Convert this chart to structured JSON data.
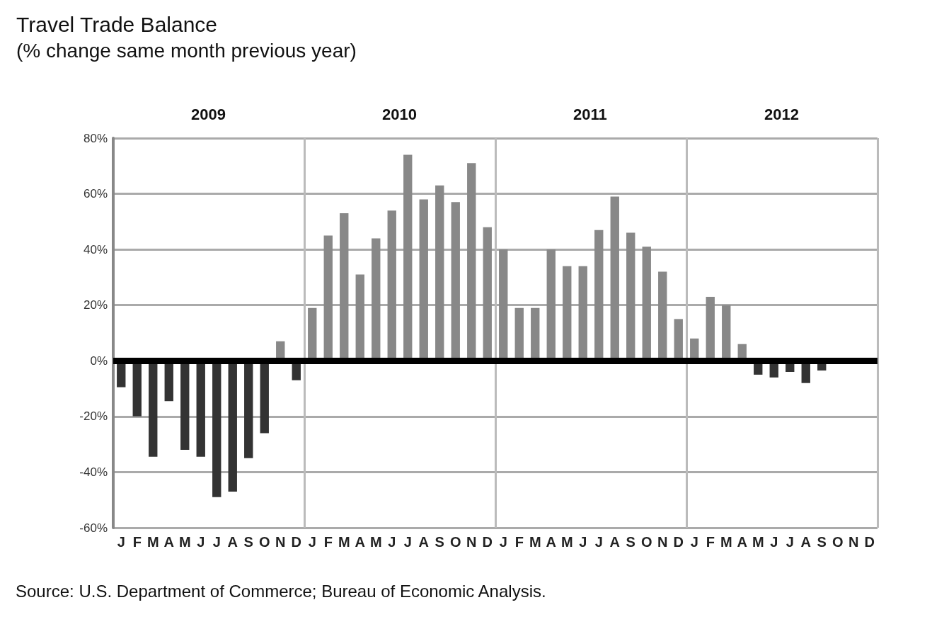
{
  "chart_data": {
    "type": "bar",
    "title": "Travel Trade Balance",
    "subtitle": "(% change same month previous year)",
    "categories": [
      "J",
      "F",
      "M",
      "A",
      "M",
      "J",
      "J",
      "A",
      "S",
      "O",
      "N",
      "D",
      "J",
      "F",
      "M",
      "A",
      "M",
      "J",
      "J",
      "A",
      "S",
      "O",
      "N",
      "D",
      "J",
      "F",
      "M",
      "A",
      "M",
      "J",
      "J",
      "A",
      "S",
      "O",
      "N",
      "D",
      "J",
      "F",
      "M",
      "A",
      "M",
      "J",
      "J",
      "A",
      "S",
      "O",
      "N",
      "D"
    ],
    "values": [
      -9.5,
      -20,
      -34.5,
      -14.5,
      -32,
      -34.5,
      -49,
      -47,
      -35,
      -26,
      7,
      -7,
      19,
      45,
      53,
      31,
      44,
      54,
      74,
      58,
      63,
      57,
      71,
      48,
      40,
      19,
      19,
      40,
      34,
      34,
      47,
      59,
      46,
      41,
      32,
      15,
      8,
      23,
      20,
      6,
      -5,
      -6,
      -4,
      -8,
      -3.5,
      null,
      null,
      null
    ],
    "colors": [
      "#333333",
      "#333333",
      "#333333",
      "#333333",
      "#333333",
      "#333333",
      "#333333",
      "#333333",
      "#333333",
      "#333333",
      "#888888",
      "#333333",
      "#888888",
      "#888888",
      "#888888",
      "#888888",
      "#888888",
      "#888888",
      "#888888",
      "#888888",
      "#888888",
      "#888888",
      "#888888",
      "#888888",
      "#888888",
      "#888888",
      "#888888",
      "#888888",
      "#888888",
      "#888888",
      "#888888",
      "#888888",
      "#888888",
      "#888888",
      "#888888",
      "#888888",
      "#888888",
      "#888888",
      "#888888",
      "#888888",
      "#333333",
      "#333333",
      "#333333",
      "#333333",
      "#333333",
      "#333333",
      "#333333",
      "#333333"
    ],
    "ylim": [
      -60,
      80
    ],
    "yticks": [
      {
        "value": -60,
        "label": "-60%"
      },
      {
        "value": -40,
        "label": "-40%"
      },
      {
        "value": -20,
        "label": "-20%"
      },
      {
        "value": 0,
        "label": "0%"
      },
      {
        "value": 20,
        "label": "20%"
      },
      {
        "value": 40,
        "label": "40%"
      },
      {
        "value": 60,
        "label": "60%"
      },
      {
        "value": 80,
        "label": "80%"
      }
    ],
    "grid": "y",
    "annotations": [
      "2009",
      "2010",
      "2011",
      "2012",
      "Source: U.S. Department of Commerce; Bureau of Economic Analysis."
    ]
  }
}
